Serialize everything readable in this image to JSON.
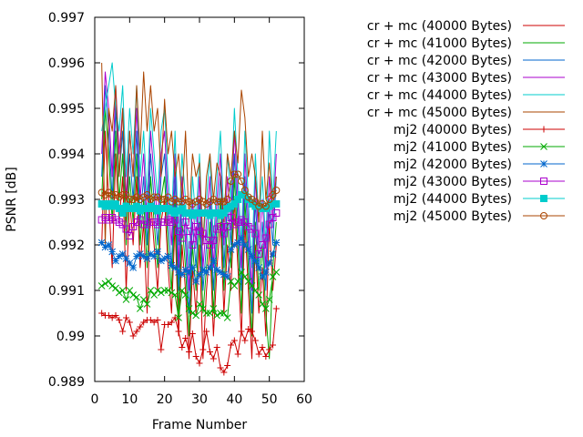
{
  "chart_data": {
    "type": "line",
    "title": "",
    "xlabel": "Frame Number",
    "ylabel": "PSNR [dB]",
    "xlim": [
      0,
      60
    ],
    "ylim": [
      0.989,
      0.997
    ],
    "x_ticks": [
      0,
      10,
      20,
      30,
      40,
      50,
      60
    ],
    "y_ticks": [
      0.989,
      0.99,
      0.991,
      0.992,
      0.993,
      0.994,
      0.995,
      0.996,
      0.997
    ],
    "x_tick_labels": [
      "0",
      "10",
      "20",
      "30",
      "40",
      "50",
      "60"
    ],
    "y_tick_labels": [
      "0.989",
      "0.99",
      "0.991",
      "0.992",
      "0.993",
      "0.994",
      "0.995",
      "0.996",
      "0.997"
    ],
    "grid": false,
    "legend_position": "top-right",
    "x": [
      2,
      3,
      4,
      5,
      6,
      7,
      8,
      9,
      10,
      11,
      12,
      13,
      14,
      15,
      16,
      17,
      18,
      19,
      20,
      21,
      22,
      23,
      24,
      25,
      26,
      27,
      28,
      29,
      30,
      31,
      32,
      33,
      34,
      35,
      36,
      37,
      38,
      39,
      40,
      41,
      42,
      43,
      44,
      45,
      46,
      47,
      48,
      49,
      50,
      51,
      52
    ],
    "series": [
      {
        "name": "cr + mc (40000 Bytes)",
        "color": "#cc0000",
        "marker": "none",
        "values": [
          0.992,
          0.9945,
          0.993,
          0.9915,
          0.994,
          0.9925,
          0.9935,
          0.991,
          0.993,
          0.992,
          0.9935,
          0.9915,
          0.9925,
          0.9905,
          0.993,
          0.992,
          0.991,
          0.9925,
          0.993,
          0.9915,
          0.9905,
          0.9925,
          0.99,
          0.992,
          0.991,
          0.9895,
          0.9915,
          0.9905,
          0.992,
          0.9895,
          0.991,
          0.992,
          0.99,
          0.9915,
          0.9925,
          0.9905,
          0.992,
          0.991,
          0.993,
          0.9915,
          0.99,
          0.9925,
          0.991,
          0.9895,
          0.992,
          0.9905,
          0.9915,
          0.99,
          0.9925,
          0.991,
          0.992
        ]
      },
      {
        "name": "cr + mc (41000 Bytes)",
        "color": "#00aa00",
        "marker": "none",
        "values": [
          0.993,
          0.995,
          0.994,
          0.9925,
          0.9945,
          0.993,
          0.994,
          0.992,
          0.9935,
          0.9925,
          0.994,
          0.992,
          0.993,
          0.9915,
          0.9935,
          0.9925,
          0.9915,
          0.993,
          0.9935,
          0.992,
          0.991,
          0.993,
          0.9905,
          0.9925,
          0.9915,
          0.99,
          0.992,
          0.991,
          0.9925,
          0.9905,
          0.9915,
          0.9925,
          0.9905,
          0.992,
          0.993,
          0.991,
          0.9925,
          0.9915,
          0.9935,
          0.992,
          0.9905,
          0.993,
          0.9915,
          0.99,
          0.9925,
          0.991,
          0.992,
          0.9905,
          0.9895,
          0.9915,
          0.9925
        ]
      },
      {
        "name": "cr + mc (42000 Bytes)",
        "color": "#0066cc",
        "marker": "none",
        "values": [
          0.9935,
          0.9955,
          0.9945,
          0.993,
          0.995,
          0.9935,
          0.9945,
          0.9925,
          0.994,
          0.993,
          0.9945,
          0.9925,
          0.9935,
          0.992,
          0.994,
          0.993,
          0.992,
          0.9935,
          0.994,
          0.9925,
          0.9915,
          0.9935,
          0.991,
          0.993,
          0.992,
          0.9905,
          0.9925,
          0.9915,
          0.993,
          0.991,
          0.992,
          0.993,
          0.991,
          0.9925,
          0.9935,
          0.9915,
          0.993,
          0.992,
          0.994,
          0.9925,
          0.991,
          0.9935,
          0.992,
          0.9905,
          0.993,
          0.9915,
          0.9925,
          0.991,
          0.993,
          0.992,
          0.9935
        ]
      },
      {
        "name": "cr + mc (43000 Bytes)",
        "color": "#aa00cc",
        "marker": "none",
        "values": [
          0.994,
          0.9958,
          0.995,
          0.9935,
          0.9955,
          0.994,
          0.995,
          0.993,
          0.9945,
          0.9935,
          0.995,
          0.993,
          0.994,
          0.9925,
          0.9945,
          0.9935,
          0.9925,
          0.994,
          0.9945,
          0.993,
          0.992,
          0.994,
          0.9915,
          0.9935,
          0.9925,
          0.991,
          0.993,
          0.992,
          0.9935,
          0.9915,
          0.9925,
          0.9935,
          0.9915,
          0.993,
          0.994,
          0.992,
          0.9935,
          0.9925,
          0.9945,
          0.993,
          0.9915,
          0.994,
          0.9925,
          0.991,
          0.9935,
          0.992,
          0.993,
          0.9915,
          0.9935,
          0.9925,
          0.994
        ]
      },
      {
        "name": "cr + mc (44000 Bytes)",
        "color": "#00cccc",
        "marker": "none",
        "values": [
          0.9945,
          0.995,
          0.9955,
          0.996,
          0.995,
          0.9945,
          0.9955,
          0.9935,
          0.995,
          0.994,
          0.9955,
          0.9935,
          0.9945,
          0.993,
          0.995,
          0.994,
          0.993,
          0.9945,
          0.995,
          0.9935,
          0.9925,
          0.9945,
          0.992,
          0.994,
          0.993,
          0.9915,
          0.9935,
          0.9925,
          0.994,
          0.992,
          0.993,
          0.994,
          0.992,
          0.9935,
          0.9945,
          0.9925,
          0.994,
          0.993,
          0.995,
          0.9935,
          0.992,
          0.9945,
          0.993,
          0.9915,
          0.994,
          0.9925,
          0.9935,
          0.992,
          0.9945,
          0.993,
          0.9945
        ]
      },
      {
        "name": "cr + mc (45000 Bytes)",
        "color": "#aa4400",
        "marker": "none",
        "values": [
          0.996,
          0.992,
          0.995,
          0.9945,
          0.9955,
          0.9935,
          0.995,
          0.9925,
          0.9945,
          0.9935,
          0.9955,
          0.994,
          0.9958,
          0.9945,
          0.9955,
          0.9945,
          0.995,
          0.9935,
          0.9952,
          0.994,
          0.9945,
          0.9935,
          0.994,
          0.993,
          0.9945,
          0.9925,
          0.994,
          0.9935,
          0.9938,
          0.992,
          0.9935,
          0.994,
          0.993,
          0.9938,
          0.9935,
          0.9925,
          0.994,
          0.9935,
          0.9945,
          0.9938,
          0.9954,
          0.9948,
          0.9935,
          0.994,
          0.9935,
          0.9925,
          0.9945,
          0.993,
          0.9938,
          0.9928,
          0.9935
        ]
      },
      {
        "name": "mj2 (40000 Bytes)",
        "color": "#cc0000",
        "marker": "plus",
        "values": [
          0.9905,
          0.99045,
          0.99045,
          0.9904,
          0.99045,
          0.99035,
          0.9901,
          0.9904,
          0.9903,
          0.99,
          0.9901,
          0.9902,
          0.9903,
          0.99035,
          0.99035,
          0.9903,
          0.99035,
          0.9897,
          0.99025,
          0.99025,
          0.9903,
          0.9904,
          0.9901,
          0.98975,
          0.98995,
          0.98965,
          0.99005,
          0.98955,
          0.9894,
          0.9897,
          0.9901,
          0.98965,
          0.9895,
          0.98975,
          0.9893,
          0.9892,
          0.98935,
          0.9898,
          0.9899,
          0.9896,
          0.9901,
          0.9899,
          0.99015,
          0.9901,
          0.9899,
          0.9896,
          0.98975,
          0.98955,
          0.9897,
          0.9898,
          0.9906
        ]
      },
      {
        "name": "mj2 (41000 Bytes)",
        "color": "#00aa00",
        "marker": "cross",
        "values": [
          0.9911,
          0.99115,
          0.9912,
          0.9911,
          0.99105,
          0.99095,
          0.991,
          0.9908,
          0.991,
          0.9909,
          0.99085,
          0.9906,
          0.9908,
          0.9907,
          0.991,
          0.9909,
          0.991,
          0.99095,
          0.991,
          0.991,
          0.99095,
          0.9909,
          0.9904,
          0.991,
          0.9909,
          0.9906,
          0.9905,
          0.99045,
          0.9907,
          0.9906,
          0.9905,
          0.9905,
          0.9906,
          0.99045,
          0.9905,
          0.9905,
          0.9904,
          0.9912,
          0.9911,
          0.9912,
          0.9914,
          0.9913,
          0.9912,
          0.9911,
          0.991,
          0.9909,
          0.9907,
          0.9906,
          0.9908,
          0.9913,
          0.9914
        ]
      },
      {
        "name": "mj2 (42000 Bytes)",
        "color": "#0066cc",
        "marker": "star",
        "values": [
          0.99205,
          0.99195,
          0.992,
          0.99185,
          0.99165,
          0.99175,
          0.9918,
          0.9917,
          0.9916,
          0.9915,
          0.99175,
          0.9918,
          0.99175,
          0.9917,
          0.9918,
          0.99175,
          0.99185,
          0.99165,
          0.9917,
          0.99175,
          0.99155,
          0.9915,
          0.9914,
          0.99135,
          0.99145,
          0.9914,
          0.9915,
          0.9912,
          0.99135,
          0.99145,
          0.9914,
          0.9915,
          0.99165,
          0.99145,
          0.9914,
          0.99135,
          0.9913,
          0.9919,
          0.992,
          0.99205,
          0.99215,
          0.992,
          0.9919,
          0.99175,
          0.99165,
          0.9915,
          0.9913,
          0.9914,
          0.9916,
          0.9918,
          0.99205
        ]
      },
      {
        "name": "mj2 (43000 Bytes)",
        "color": "#aa00cc",
        "marker": "square",
        "values": [
          0.99255,
          0.9926,
          0.99255,
          0.9926,
          0.99255,
          0.9925,
          0.99245,
          0.99235,
          0.9922,
          0.9924,
          0.9925,
          0.99255,
          0.99245,
          0.99245,
          0.9925,
          0.9925,
          0.99245,
          0.9925,
          0.9925,
          0.99255,
          0.9925,
          0.99255,
          0.9923,
          0.99215,
          0.9925,
          0.9923,
          0.992,
          0.9924,
          0.9923,
          0.99225,
          0.9921,
          0.992,
          0.9921,
          0.99235,
          0.9924,
          0.99225,
          0.9924,
          0.9926,
          0.99245,
          0.9925,
          0.99255,
          0.9925,
          0.9924,
          0.99235,
          0.99225,
          0.9918,
          0.992,
          0.99215,
          0.99245,
          0.9926,
          0.9927
        ]
      },
      {
        "name": "mj2 (44000 Bytes)",
        "color": "#00cccc",
        "marker": "filled-square",
        "values": [
          0.9929,
          0.99285,
          0.9929,
          0.99285,
          0.9929,
          0.9928,
          0.9927,
          0.99285,
          0.9928,
          0.9928,
          0.99285,
          0.99275,
          0.9928,
          0.9928,
          0.99285,
          0.9928,
          0.99275,
          0.9928,
          0.9928,
          0.9928,
          0.99275,
          0.9927,
          0.99275,
          0.9928,
          0.9927,
          0.9927,
          0.99265,
          0.9927,
          0.9927,
          0.9927,
          0.9927,
          0.99265,
          0.9927,
          0.9927,
          0.99265,
          0.9927,
          0.9928,
          0.99285,
          0.9929,
          0.993,
          0.9931,
          0.9931,
          0.993,
          0.9929,
          0.99285,
          0.99285,
          0.9928,
          0.9928,
          0.99285,
          0.9929,
          0.9929
        ]
      },
      {
        "name": "mj2 (45000 Bytes)",
        "color": "#aa4400",
        "marker": "circle",
        "values": [
          0.99315,
          0.9931,
          0.99315,
          0.9931,
          0.9931,
          0.99305,
          0.9931,
          0.9931,
          0.993,
          0.993,
          0.99305,
          0.993,
          0.99305,
          0.9931,
          0.993,
          0.99305,
          0.99305,
          0.993,
          0.993,
          0.99305,
          0.99295,
          0.993,
          0.99295,
          0.99295,
          0.993,
          0.99295,
          0.9929,
          0.99295,
          0.993,
          0.99295,
          0.9929,
          0.99295,
          0.993,
          0.99295,
          0.99295,
          0.99295,
          0.993,
          0.9934,
          0.99355,
          0.99355,
          0.9934,
          0.9932,
          0.99305,
          0.993,
          0.99295,
          0.99285,
          0.9929,
          0.99285,
          0.993,
          0.9931,
          0.9932
        ]
      }
    ]
  }
}
